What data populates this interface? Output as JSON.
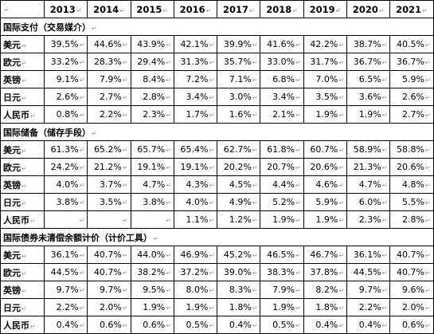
{
  "mark": "↵",
  "years": [
    "2013",
    "2014",
    "2015",
    "2016",
    "2017",
    "2018",
    "2019",
    "2020",
    "2021"
  ],
  "sections": [
    {
      "title": "国际支付（交易媒介）",
      "rows": [
        {
          "currency": "美元",
          "values": [
            "39.5%",
            "44.6%",
            "43.9%",
            "42.1%",
            "39.9%",
            "41.6%",
            "42.2%",
            "38.7%",
            "40.5%"
          ]
        },
        {
          "currency": "欧元",
          "values": [
            "33.2%",
            "28.3%",
            "29.4%",
            "31.3%",
            "35.7%",
            "33.0%",
            "31.7%",
            "36.7%",
            "36.7%"
          ]
        },
        {
          "currency": "英镑",
          "values": [
            "9.1%",
            "7.9%",
            "8.4%",
            "7.2%",
            "7.1%",
            "6.8%",
            "7.0%",
            "6.5%",
            "5.9%"
          ]
        },
        {
          "currency": "日元",
          "values": [
            "2.6%",
            "2.7%",
            "2.8%",
            "3.4%",
            "3.0%",
            "3.4%",
            "3.5%",
            "3.6%",
            "2.6%"
          ]
        },
        {
          "currency": "人民币",
          "values": [
            "0.8%",
            "2.2%",
            "2.3%",
            "1.7%",
            "1.6%",
            "2.1%",
            "1.9%",
            "1.9%",
            "2.7%"
          ]
        }
      ]
    },
    {
      "title": "国际储备（储存手段）",
      "rows": [
        {
          "currency": "美元",
          "values": [
            "61.3%",
            "65.2%",
            "65.7%",
            "65.4%",
            "62.7%",
            "61.8%",
            "60.7%",
            "58.9%",
            "58.8%"
          ]
        },
        {
          "currency": "欧元",
          "values": [
            "24.2%",
            "21.2%",
            "19.1%",
            "19.1%",
            "20.2%",
            "20.7%",
            "20.6%",
            "21.3%",
            "20.6%"
          ]
        },
        {
          "currency": "英镑",
          "values": [
            "4.0%",
            "3.7%",
            "4.7%",
            "4.3%",
            "4.5%",
            "4.4%",
            "4.6%",
            "4.7%",
            "4.8%"
          ]
        },
        {
          "currency": "日元",
          "values": [
            "3.8%",
            "3.5%",
            "3.8%",
            "4.0%",
            "4.9%",
            "5.2%",
            "5.9%",
            "6.0%",
            "5.5%"
          ]
        },
        {
          "currency": "人民币",
          "values": [
            "",
            "",
            "",
            "1.1%",
            "1.2%",
            "1.9%",
            "1.9%",
            "2.3%",
            "2.8%"
          ]
        }
      ]
    },
    {
      "title": "国际债券未清偿余额计价（计价工具）",
      "rows": [
        {
          "currency": "美元",
          "values": [
            "36.1%",
            "40.7%",
            "44.0%",
            "46.9%",
            "45.2%",
            "46.5%",
            "46.7%",
            "36.1%",
            "40.7%"
          ]
        },
        {
          "currency": "欧元",
          "values": [
            "44.5%",
            "40.7%",
            "38.2%",
            "37.2%",
            "39.0%",
            "38.3%",
            "37.8%",
            "44.5%",
            "40.7%"
          ]
        },
        {
          "currency": "英镑",
          "values": [
            "9.7%",
            "9.7%",
            "9.5%",
            "8.0%",
            "8.3%",
            "7.9%",
            "8.2%",
            "9.7%",
            "9.6%"
          ]
        },
        {
          "currency": "日元",
          "values": [
            "2.2%",
            "2.0%",
            "1.9%",
            "1.9%",
            "1.8%",
            "1.9%",
            "1.8%",
            "2.2%",
            "2.0%"
          ]
        },
        {
          "currency": "人民币",
          "values": [
            "0.4%",
            "0.6%",
            "0.6%",
            "0.5%",
            "0.4%",
            "0.5%",
            "0.4%",
            "0.4%",
            "0.6%"
          ]
        }
      ]
    }
  ]
}
